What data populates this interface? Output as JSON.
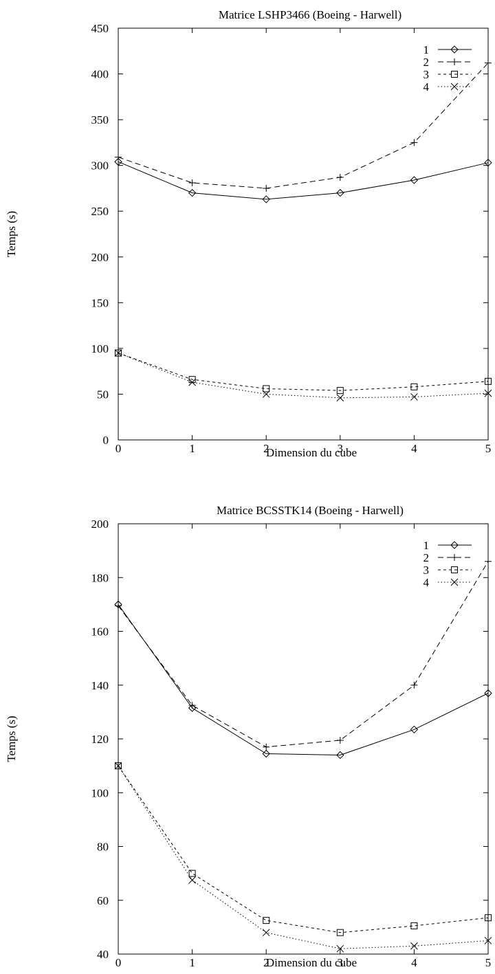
{
  "chart_data": [
    {
      "type": "line",
      "title": "Matrice LSHP3466 (Boeing - Harwell)",
      "xlabel": "Dimension du cube",
      "ylabel": "Temps (s)",
      "x": [
        0,
        1,
        2,
        3,
        4,
        5
      ],
      "xlim": [
        0,
        5
      ],
      "ylim": [
        0,
        450
      ],
      "xticks": [
        0,
        1,
        2,
        3,
        4,
        5
      ],
      "yticks": [
        0,
        50,
        100,
        150,
        200,
        250,
        300,
        350,
        400,
        450
      ],
      "grid": false,
      "legend": "top-right",
      "series": [
        {
          "name": "1",
          "marker": "diamond",
          "dash": "solid",
          "values": [
            304,
            270,
            263,
            270,
            284,
            303
          ]
        },
        {
          "name": "2",
          "marker": "plus",
          "dash": "dashed",
          "values": [
            309,
            281,
            275,
            287,
            325,
            412
          ]
        },
        {
          "name": "3",
          "marker": "square",
          "dash": "short-dashed",
          "values": [
            95,
            66,
            56,
            54,
            58,
            64
          ]
        },
        {
          "name": "4",
          "marker": "cross",
          "dash": "dotted",
          "values": [
            95,
            63,
            50,
            46,
            47,
            51
          ]
        }
      ]
    },
    {
      "type": "line",
      "title": "Matrice BCSSTK14 (Boeing - Harwell)",
      "xlabel": "Dimension du cube",
      "ylabel": "Temps (s)",
      "x": [
        0,
        1,
        2,
        3,
        4,
        5
      ],
      "xlim": [
        0,
        5
      ],
      "ylim": [
        40,
        200
      ],
      "xticks": [
        0,
        1,
        2,
        3,
        4,
        5
      ],
      "yticks": [
        40,
        60,
        80,
        100,
        120,
        140,
        160,
        180,
        200
      ],
      "grid": false,
      "legend": "top-right",
      "series": [
        {
          "name": "1",
          "marker": "diamond",
          "dash": "solid",
          "values": [
            170,
            131.5,
            114.5,
            114,
            123.5,
            137
          ]
        },
        {
          "name": "2",
          "marker": "plus",
          "dash": "dashed",
          "values": [
            169.5,
            132.5,
            117,
            119.5,
            140,
            186
          ]
        },
        {
          "name": "3",
          "marker": "square",
          "dash": "short-dashed",
          "values": [
            110,
            70,
            52.5,
            48,
            50.5,
            53.5
          ]
        },
        {
          "name": "4",
          "marker": "cross",
          "dash": "dotted",
          "values": [
            110,
            67.5,
            48,
            42,
            43,
            45
          ]
        }
      ]
    }
  ]
}
